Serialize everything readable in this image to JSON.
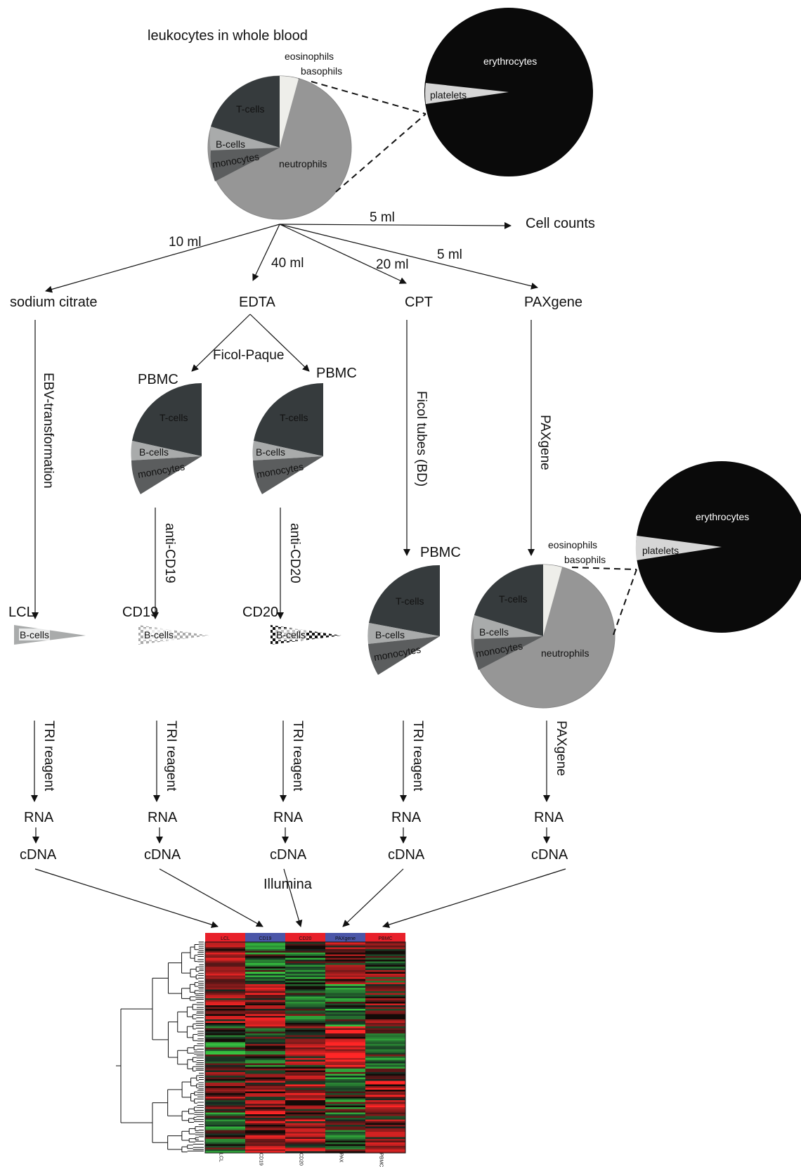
{
  "top": {
    "title": "leukocytes in whole blood",
    "wbc_labels": {
      "eosinophils": "eosinophils",
      "basophils": "basophils",
      "tcells": "T-cells",
      "bcells": "B-cells",
      "monocytes": "monocytes",
      "neutrophils": "neutrophils"
    },
    "rbc_labels": {
      "erythrocytes": "erythrocytes",
      "platelets": "platelets"
    }
  },
  "split": {
    "cell_counts": "Cell counts",
    "volumes": {
      "cell_counts": "5 ml",
      "citrate": "10 ml",
      "edta": "40 ml",
      "cpt": "20 ml",
      "paxgene": "5 ml"
    }
  },
  "tubes": {
    "citrate": "sodium citrate",
    "edta": "EDTA",
    "cpt": "CPT",
    "paxgene": "PAXgene"
  },
  "steps": {
    "ebv": "EBV-transformation",
    "ficoll": "Ficol-Paque",
    "ficol_tubes": "Ficol tubes (BD)",
    "paxgene_step": "PAXgene",
    "anti_cd19": "anti-CD19",
    "anti_cd20": "anti-CD20",
    "tri": "TRI reagent",
    "paxgene_rna": "PAXgene",
    "illumina": "Illumina"
  },
  "pbmc": {
    "label": "PBMC",
    "tcells": "T-cells",
    "bcells": "B-cells",
    "monocytes": "monocytes"
  },
  "samples": {
    "lcl": "LCL",
    "cd19": "CD19",
    "cd20": "CD20",
    "bcells": "B-cells"
  },
  "pax_pie": {
    "eosinophils": "eosinophils",
    "basophils": "basophils",
    "tcells": "T-cells",
    "bcells": "B-cells",
    "monocytes": "monocytes",
    "neutrophils": "neutrophils",
    "erythrocytes": "erythrocytes",
    "platelets": "platelets"
  },
  "molecules": {
    "rna": "RNA",
    "cdna": "cDNA"
  },
  "heatmap": {
    "columns": [
      "LCL",
      "CD19",
      "CD20",
      "PAXgene",
      "PBMC"
    ],
    "bottom_labels": [
      "LCL",
      "CD19",
      "CD20",
      "PAX",
      "PBMC"
    ],
    "header_colors": [
      "#e8202a",
      "#4b56a8",
      "#e8202a",
      "#4b56a8",
      "#e8202a"
    ],
    "up_color": "#e8202a",
    "down_color": "#3fbf3f"
  },
  "colors": {
    "tcells": "#363b3d",
    "bcells": "#a9abab",
    "monocytes": "#5b5d5e",
    "neutrophils": "#969696",
    "eos": "#eeeeea",
    "rbc": "#0a0a0a",
    "platelets": "#d6d6d6"
  }
}
